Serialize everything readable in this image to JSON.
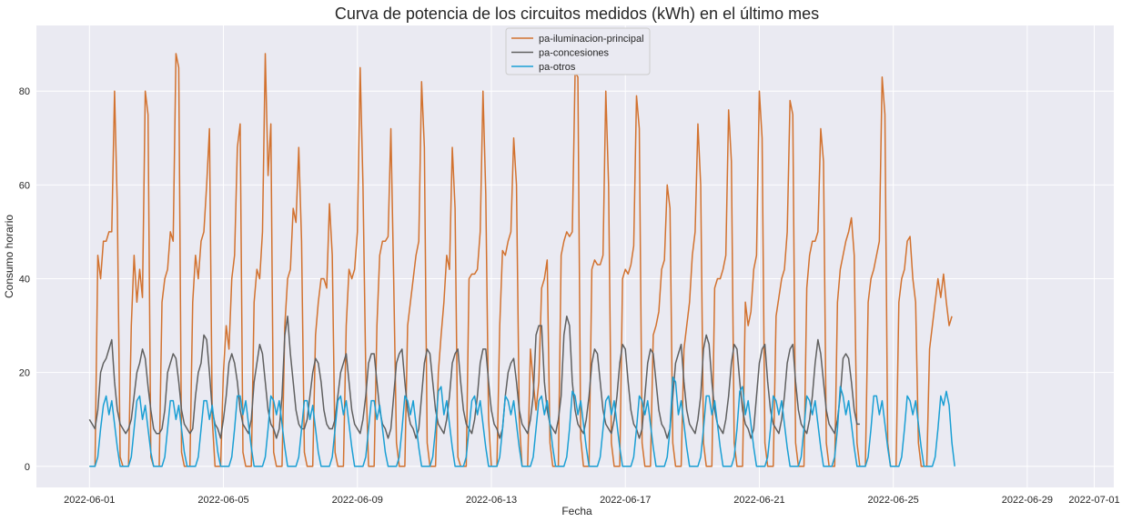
{
  "chart_data": {
    "type": "line",
    "title": "Curva de potencia de los circuitos medidos (kWh) en el último mes",
    "xlabel": "Fecha",
    "ylabel": "Consumo horario",
    "x_range": [
      "2022-05-30T10:00",
      "2022-07-01T14:00"
    ],
    "ylim": [
      -4.5,
      94
    ],
    "x_ticks": [
      "2022-06-01",
      "2022-06-05",
      "2022-06-09",
      "2022-06-13",
      "2022-06-17",
      "2022-06-21",
      "2022-06-25",
      "2022-06-29",
      "2022-07-01"
    ],
    "y_ticks": [
      0,
      20,
      40,
      60,
      80
    ],
    "grid": true,
    "legend_position": "top-center",
    "background": "#eaeaf2",
    "x_start": "2022-06-01T00:00",
    "x_step_hours": 2,
    "series": [
      {
        "name": "pa-iluminacion-principal",
        "color": "#d2722f",
        "values": [
          0,
          0,
          0,
          45,
          40,
          48,
          48,
          50,
          50,
          80,
          55,
          2,
          0,
          0,
          0,
          30,
          45,
          35,
          42,
          36,
          80,
          75,
          2,
          0,
          0,
          0,
          35,
          40,
          42,
          50,
          48,
          88,
          85,
          3,
          0,
          0,
          0,
          35,
          45,
          40,
          48,
          50,
          60,
          72,
          10,
          0,
          0,
          0,
          20,
          30,
          25,
          40,
          45,
          68,
          73,
          3,
          0,
          0,
          0,
          35,
          42,
          40,
          50,
          88,
          62,
          73,
          3,
          0,
          0,
          0,
          30,
          40,
          42,
          55,
          52,
          68,
          48,
          3,
          0,
          0,
          0,
          28,
          35,
          40,
          40,
          38,
          56,
          45,
          3,
          0,
          0,
          0,
          30,
          42,
          40,
          42,
          50,
          85,
          60,
          20,
          0,
          0,
          0,
          30,
          45,
          48,
          48,
          49,
          72,
          40,
          5,
          0,
          0,
          0,
          30,
          35,
          40,
          45,
          48,
          82,
          68,
          5,
          0,
          0,
          0,
          20,
          28,
          35,
          45,
          42,
          68,
          55,
          2,
          0,
          0,
          0,
          40,
          41,
          41,
          42,
          50,
          80,
          58,
          10,
          0,
          0,
          0,
          30,
          46,
          45,
          48,
          50,
          70,
          60,
          10,
          0,
          0,
          0,
          25,
          18,
          12,
          18,
          38,
          40,
          44,
          5,
          0,
          0,
          0,
          45,
          48,
          50,
          49,
          50,
          84,
          83,
          6,
          0,
          0,
          0,
          42,
          44,
          43,
          43,
          45,
          80,
          60,
          5,
          0,
          0,
          0,
          40,
          42,
          41,
          43,
          47,
          79,
          72,
          5,
          0,
          0,
          0,
          28,
          30,
          33,
          42,
          44,
          60,
          55,
          5,
          0,
          0,
          0,
          25,
          30,
          35,
          45,
          50,
          73,
          60,
          5,
          0,
          0,
          0,
          38,
          40,
          40,
          42,
          45,
          76,
          65,
          5,
          0,
          0,
          0,
          35,
          30,
          33,
          42,
          45,
          80,
          70,
          5,
          0,
          0,
          0,
          32,
          36,
          40,
          42,
          50,
          78,
          75,
          5,
          0,
          0,
          0,
          38,
          45,
          48,
          48,
          50,
          72,
          65,
          5,
          0,
          0,
          0,
          35,
          42,
          45,
          48,
          50,
          53,
          45,
          5,
          0,
          0,
          0,
          35,
          40,
          42,
          45,
          48,
          83,
          75,
          5,
          0,
          0,
          0,
          35,
          40,
          42,
          48,
          49,
          40,
          35,
          5,
          0,
          0,
          0,
          25,
          30,
          35,
          40,
          36,
          41,
          35,
          30,
          32
        ]
      },
      {
        "name": "pa-concesiones",
        "color": "#606060",
        "values": [
          10,
          9,
          8,
          12,
          20,
          22,
          23,
          25,
          27,
          18,
          12,
          9,
          8,
          7,
          8,
          10,
          15,
          20,
          22,
          25,
          23,
          17,
          12,
          8,
          7,
          7,
          8,
          12,
          20,
          22,
          24,
          23,
          18,
          12,
          9,
          8,
          7,
          8,
          15,
          20,
          22,
          28,
          27,
          20,
          12,
          9,
          8,
          6,
          10,
          15,
          22,
          24,
          22,
          18,
          12,
          9,
          8,
          7,
          10,
          18,
          22,
          26,
          24,
          18,
          12,
          9,
          8,
          6,
          8,
          15,
          28,
          32,
          24,
          18,
          12,
          9,
          8,
          8,
          10,
          15,
          20,
          23,
          22,
          18,
          12,
          9,
          8,
          8,
          10,
          15,
          20,
          22,
          24,
          18,
          12,
          9,
          8,
          7,
          10,
          15,
          22,
          24,
          24,
          18,
          12,
          9,
          8,
          6,
          8,
          15,
          22,
          24,
          25,
          18,
          12,
          9,
          8,
          6,
          8,
          15,
          22,
          25,
          24,
          18,
          12,
          9,
          8,
          7,
          10,
          15,
          22,
          24,
          25,
          18,
          12,
          9,
          8,
          7,
          10,
          15,
          22,
          25,
          25,
          18,
          12,
          9,
          8,
          6,
          8,
          15,
          20,
          22,
          23,
          18,
          12,
          9,
          8,
          7,
          10,
          15,
          28,
          30,
          30,
          18,
          12,
          9,
          8,
          7,
          10,
          15,
          28,
          32,
          30,
          18,
          12,
          9,
          8,
          7,
          10,
          15,
          22,
          25,
          24,
          18,
          12,
          9,
          8,
          7,
          10,
          15,
          22,
          26,
          25,
          18,
          12,
          9,
          8,
          6,
          8,
          15,
          22,
          25,
          24,
          18,
          12,
          9,
          8,
          6,
          8,
          15,
          22,
          24,
          26,
          18,
          12,
          9,
          8,
          7,
          10,
          15,
          25,
          28,
          26,
          18,
          12,
          9,
          8,
          7,
          10,
          15,
          22,
          26,
          25,
          18,
          12,
          9,
          8,
          6,
          8,
          15,
          22,
          25,
          26,
          18,
          12,
          9,
          8,
          7,
          10,
          15,
          22,
          25,
          26,
          18,
          12,
          9,
          8,
          7,
          10,
          15,
          22,
          27,
          24,
          18,
          12,
          9,
          8,
          7,
          10,
          15,
          23,
          24,
          23,
          18,
          12,
          9,
          9
        ]
      },
      {
        "name": "pa-otros",
        "color": "#1a9fd4",
        "values": [
          0,
          0,
          0,
          2,
          8,
          13,
          15,
          11,
          14,
          9,
          4,
          0,
          0,
          0,
          0,
          2,
          8,
          14,
          15,
          10,
          13,
          8,
          3,
          0,
          0,
          0,
          0,
          2,
          8,
          14,
          14,
          10,
          13,
          8,
          3,
          0,
          0,
          0,
          0,
          2,
          8,
          14,
          14,
          10,
          13,
          8,
          3,
          0,
          0,
          0,
          0,
          2,
          8,
          15,
          15,
          11,
          14,
          9,
          4,
          0,
          0,
          0,
          0,
          2,
          8,
          15,
          14,
          11,
          14,
          9,
          4,
          0,
          0,
          0,
          0,
          2,
          8,
          14,
          14,
          10,
          13,
          8,
          3,
          0,
          0,
          0,
          0,
          2,
          8,
          14,
          15,
          11,
          14,
          9,
          4,
          0,
          0,
          0,
          0,
          2,
          8,
          14,
          14,
          10,
          13,
          8,
          3,
          0,
          0,
          0,
          0,
          2,
          8,
          15,
          14,
          11,
          14,
          9,
          4,
          0,
          0,
          0,
          0,
          2,
          8,
          16,
          17,
          11,
          14,
          9,
          4,
          0,
          0,
          0,
          0,
          2,
          8,
          14,
          15,
          11,
          14,
          9,
          4,
          0,
          0,
          0,
          0,
          2,
          8,
          15,
          14,
          11,
          14,
          9,
          4,
          0,
          0,
          0,
          0,
          2,
          8,
          14,
          15,
          11,
          14,
          9,
          4,
          0,
          0,
          0,
          0,
          2,
          8,
          16,
          15,
          11,
          14,
          9,
          4,
          0,
          0,
          0,
          0,
          2,
          8,
          14,
          15,
          11,
          14,
          9,
          4,
          0,
          0,
          0,
          0,
          2,
          8,
          15,
          14,
          11,
          14,
          9,
          4,
          0,
          0,
          0,
          0,
          2,
          8,
          19,
          18,
          11,
          14,
          9,
          4,
          0,
          0,
          0,
          0,
          2,
          8,
          15,
          15,
          11,
          14,
          9,
          4,
          0,
          0,
          0,
          0,
          2,
          8,
          16,
          17,
          11,
          14,
          9,
          4,
          0,
          0,
          0,
          0,
          2,
          8,
          15,
          14,
          11,
          14,
          9,
          4,
          0,
          0,
          0,
          0,
          2,
          8,
          15,
          14,
          11,
          14,
          9,
          4,
          0,
          0,
          0,
          0,
          2,
          8,
          17,
          15,
          11,
          14,
          9,
          4,
          0,
          0,
          0,
          0,
          2,
          8,
          15,
          15,
          11,
          14,
          9,
          4,
          0,
          0,
          0,
          0,
          2,
          8,
          15,
          14,
          11,
          14,
          9,
          4,
          0,
          0,
          0,
          0,
          2,
          8,
          15,
          13,
          16,
          13,
          5,
          0
        ]
      }
    ]
  }
}
